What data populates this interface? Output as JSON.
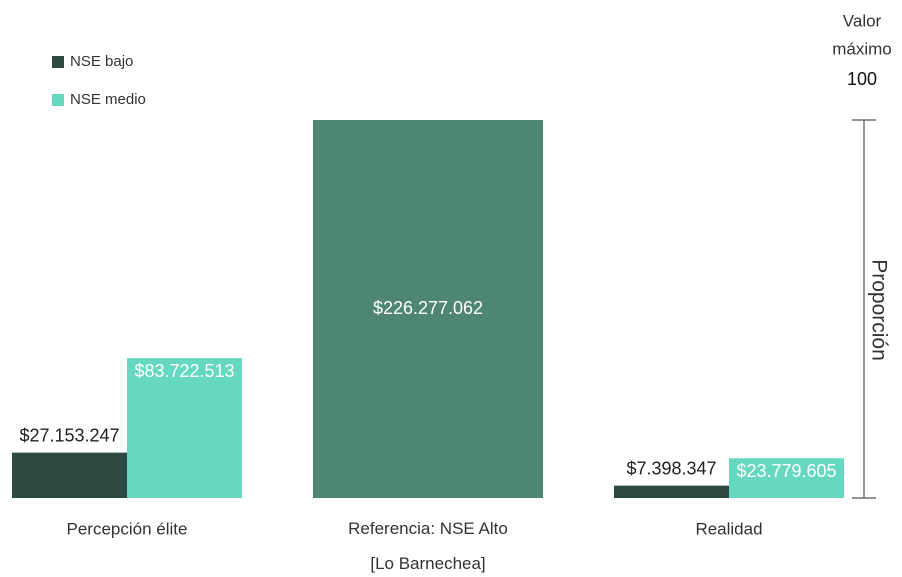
{
  "chart_data": {
    "type": "bar",
    "categories": [
      "Percepción élite",
      "Referencia: NSE Alto [Lo Barnechea]",
      "Realidad"
    ],
    "series": [
      {
        "name": "NSE bajo",
        "color": "#2c4a42",
        "values": [
          27153247,
          null,
          7398347
        ],
        "value_labels": [
          "$27.153.247",
          null,
          "$7.398.347"
        ]
      },
      {
        "name": "NSE medio",
        "color": "#66d8bf",
        "values": [
          83722513,
          null,
          23779605
        ],
        "value_labels": [
          "$83.722.513",
          null,
          "$23.779.605"
        ]
      }
    ],
    "reference": {
      "color": "#4e8573",
      "values": [
        null,
        226277062,
        null
      ],
      "value_labels": [
        null,
        "$226.277.062",
        null
      ]
    },
    "ylim": [
      0,
      226277062
    ],
    "y2lim": [
      0,
      100
    ],
    "y2ticks": [
      100
    ],
    "y2_annotation": [
      "Valor",
      "máximo"
    ],
    "y2label": "Proporción",
    "legend": "top-left"
  }
}
